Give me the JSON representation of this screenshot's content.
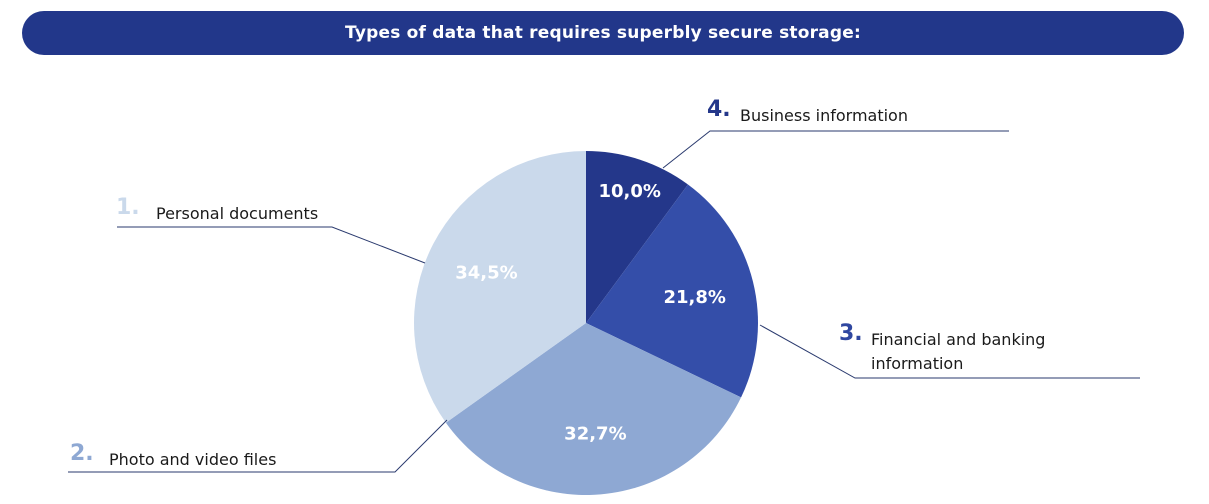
{
  "header": {
    "title": "Types of data that requires superbly secure storage:"
  },
  "colors": {
    "banner": "#22378a",
    "leader_line": "#2a3a6e",
    "value_label": "#ffffff"
  },
  "chart_data": {
    "type": "pie",
    "title": "Types of data that requires superbly secure storage:",
    "start": "12 o'clock",
    "direction": "clockwise",
    "slices": [
      {
        "index": "4.",
        "label": "Business information",
        "value": 10.0,
        "value_label": "10,0%",
        "color": "#24378a",
        "number_color": "#24378a"
      },
      {
        "index": "3.",
        "label": "Financial and banking\ninformation",
        "value": 21.8,
        "value_label": "21,8%",
        "color": "#344ea9",
        "number_color": "#2f47a0"
      },
      {
        "index": "2.",
        "label": "Photo and video files",
        "value": 32.7,
        "value_label": "32,7%",
        "color": "#8ea8d3",
        "number_color": "#8ea8d3"
      },
      {
        "index": "1.",
        "label": "Personal documents",
        "value": 34.5,
        "value_label": "34,5%",
        "color": "#cad9eb",
        "number_color": "#cad9eb"
      }
    ]
  }
}
